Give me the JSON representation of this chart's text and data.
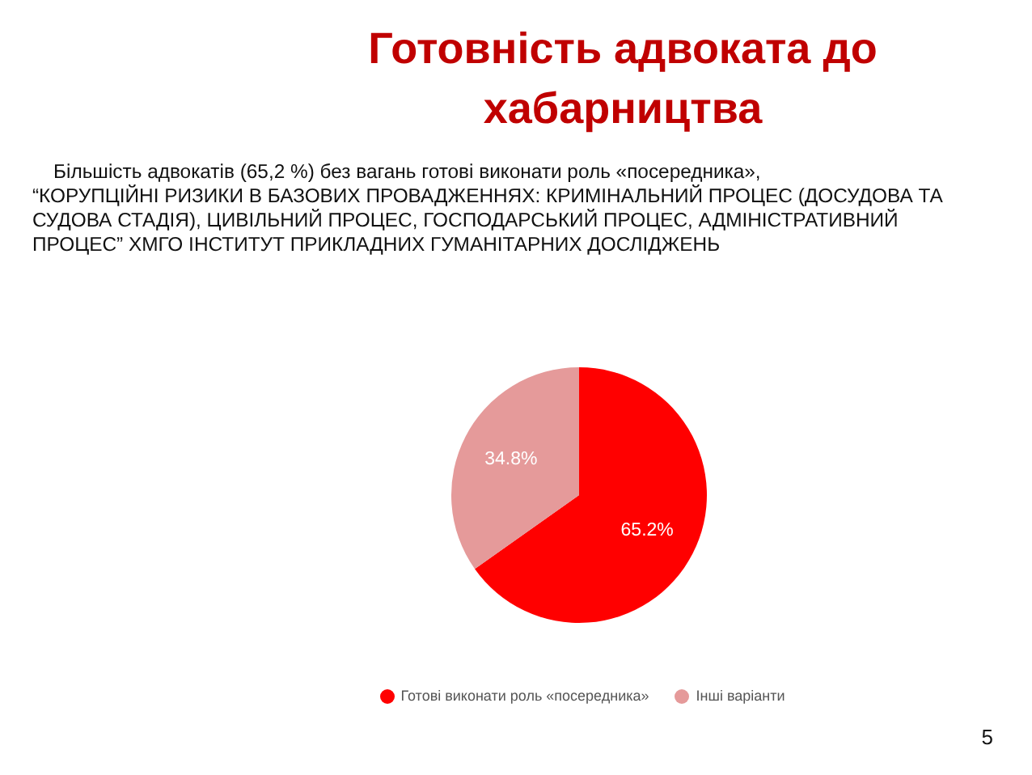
{
  "chart_data": {
    "type": "pie",
    "title": "Готовність адвоката до хабарництва",
    "subtitle": "Більшість адвокатів (65,2 %) без вагань готові виконати роль «посередника»,",
    "annotations": [
      "“КОРУПЦІЙНІ РИЗИКИ В БАЗОВИХ ПРОВАДЖЕННЯХ: КРИМІНАЛЬНИЙ ПРОЦЕС (ДОСУДОВА ТА СУДОВА СТАДІЯ), ЦИВІЛЬНИЙ ПРОЦЕС, ГОСПОДАРСЬКИЙ ПРОЦЕС, АДМІНІСТРАТИВНИЙ ПРОЦЕС” ХМГО ІНСТИТУТ ПРИКЛАДНИХ ГУМАНІТАРНИХ ДОСЛІДЖЕНЬ",
      "5"
    ],
    "categories": [
      "Готові виконати роль «посередника»",
      "Інші варіанти"
    ],
    "values": [
      65.2,
      34.8
    ],
    "colors": [
      "#ff0000",
      "#e59a9a"
    ],
    "value_labels": [
      "65.2%",
      "34.8%"
    ],
    "legend": "bottom"
  }
}
